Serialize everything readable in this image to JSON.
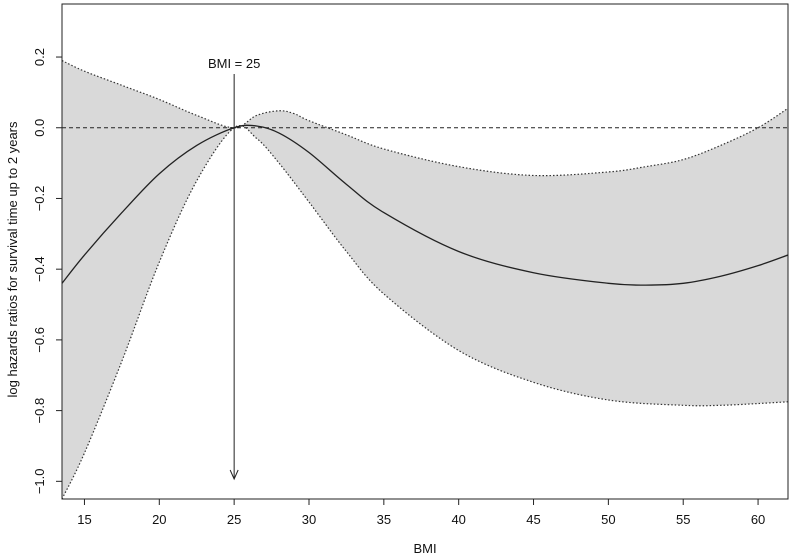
{
  "chart_data": {
    "type": "line",
    "xlabel": "BMI",
    "ylabel": "log hazards ratios for survival time up to 2 years",
    "xlim": [
      13.5,
      62
    ],
    "ylim": [
      -1.05,
      0.35
    ],
    "x_ticks": [
      15,
      20,
      25,
      30,
      35,
      40,
      45,
      50,
      55,
      60
    ],
    "y_ticks": [
      0.2,
      0.0,
      -0.2,
      -0.4,
      -0.6,
      -0.8,
      -1.0
    ],
    "y_tick_labels": [
      "0.2",
      "0.0",
      "−0.2",
      "−0.4",
      "−0.6",
      "−0.8",
      "−1.0"
    ],
    "reference_line_y": 0.0,
    "annotation": {
      "text": "BMI = 25",
      "x": 25
    },
    "series": [
      {
        "role": "estimate",
        "x": [
          13.5,
          15,
          17.5,
          20,
          22.5,
          25,
          26.5,
          28,
          30,
          32.5,
          35,
          40,
          45,
          50,
          52.5,
          55,
          57.5,
          60,
          62
        ],
        "values": [
          -0.44,
          -0.36,
          -0.24,
          -0.13,
          -0.05,
          0.0,
          0.005,
          -0.015,
          -0.07,
          -0.16,
          -0.24,
          -0.35,
          -0.41,
          -0.44,
          -0.445,
          -0.44,
          -0.42,
          -0.39,
          -0.36
        ]
      },
      {
        "role": "upper_ci",
        "x": [
          13.5,
          15,
          17.5,
          20,
          22.5,
          25,
          26.5,
          28,
          29,
          30,
          32.5,
          35,
          40,
          45,
          50,
          52.5,
          55,
          57.5,
          60,
          62
        ],
        "values": [
          0.19,
          0.16,
          0.12,
          0.08,
          0.035,
          0.0,
          0.035,
          0.048,
          0.04,
          0.02,
          -0.02,
          -0.06,
          -0.11,
          -0.135,
          -0.125,
          -0.11,
          -0.09,
          -0.05,
          0.0,
          0.055
        ]
      },
      {
        "role": "lower_ci",
        "x": [
          13.5,
          15,
          17.5,
          20,
          22.5,
          25,
          26.5,
          28,
          30,
          32.5,
          35,
          40,
          45,
          50,
          55,
          57.5,
          60,
          62
        ],
        "values": [
          -1.05,
          -0.92,
          -0.66,
          -0.38,
          -0.15,
          0.0,
          -0.03,
          -0.1,
          -0.21,
          -0.35,
          -0.47,
          -0.63,
          -0.72,
          -0.77,
          -0.785,
          -0.785,
          -0.78,
          -0.775
        ]
      }
    ],
    "colors": {
      "band": "#d9d9d9",
      "line": "#222222",
      "bounds": "#333333"
    },
    "grid": false
  }
}
